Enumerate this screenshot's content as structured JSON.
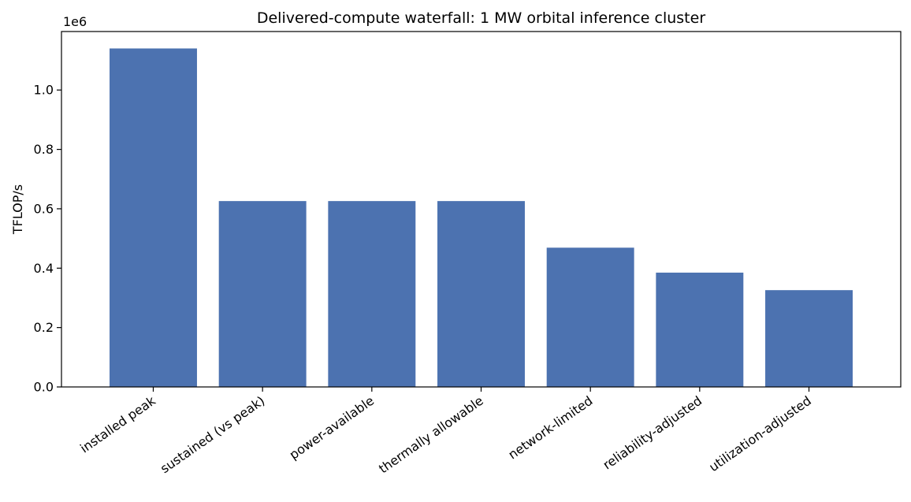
{
  "chart_data": {
    "type": "bar",
    "title": "Delivered-compute waterfall: 1 MW orbital inference cluster",
    "xlabel": "",
    "ylabel": "TFLOP/s",
    "y_scale_note": "1e6",
    "categories": [
      "installed peak",
      "sustained (vs peak)",
      "power-available",
      "thermally allowable",
      "network-limited",
      "reliability-adjusted",
      "utilization-adjusted"
    ],
    "values": [
      1140000,
      626000,
      626000,
      626000,
      469000,
      385000,
      326000
    ],
    "ylim": [
      0,
      1197000
    ],
    "yticks": [
      0,
      200000,
      400000,
      600000,
      800000,
      1000000
    ],
    "ytick_labels": [
      "0.0",
      "0.2",
      "0.4",
      "0.6",
      "0.8",
      "1.0"
    ],
    "grid": false,
    "legend": "none",
    "colors": {
      "bar": "#4c72b0"
    }
  }
}
